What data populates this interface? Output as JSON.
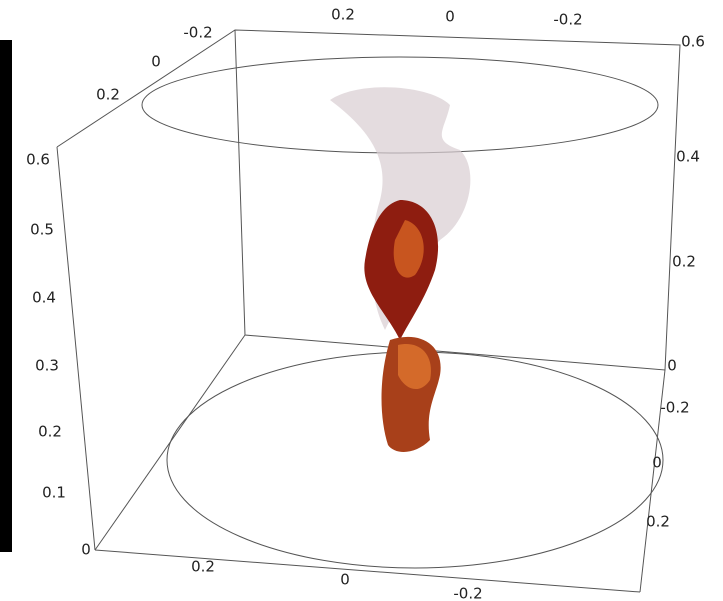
{
  "axes": {
    "top_edge": [
      "0.2",
      "0",
      "-0.2"
    ],
    "top_left_edge": [
      "-0.2",
      "0",
      "0.2"
    ],
    "left_vertical": [
      "0.6",
      "0.5",
      "0.4",
      "0.3",
      "0.2",
      "0.1",
      "0"
    ],
    "right_vertical": [
      "0.6",
      "0.4",
      "0.2",
      "0"
    ],
    "right_lower_edge": [
      "-0.2",
      "0",
      "0.2"
    ],
    "bottom_edge": [
      "0.2",
      "0",
      "-0.2"
    ]
  }
}
